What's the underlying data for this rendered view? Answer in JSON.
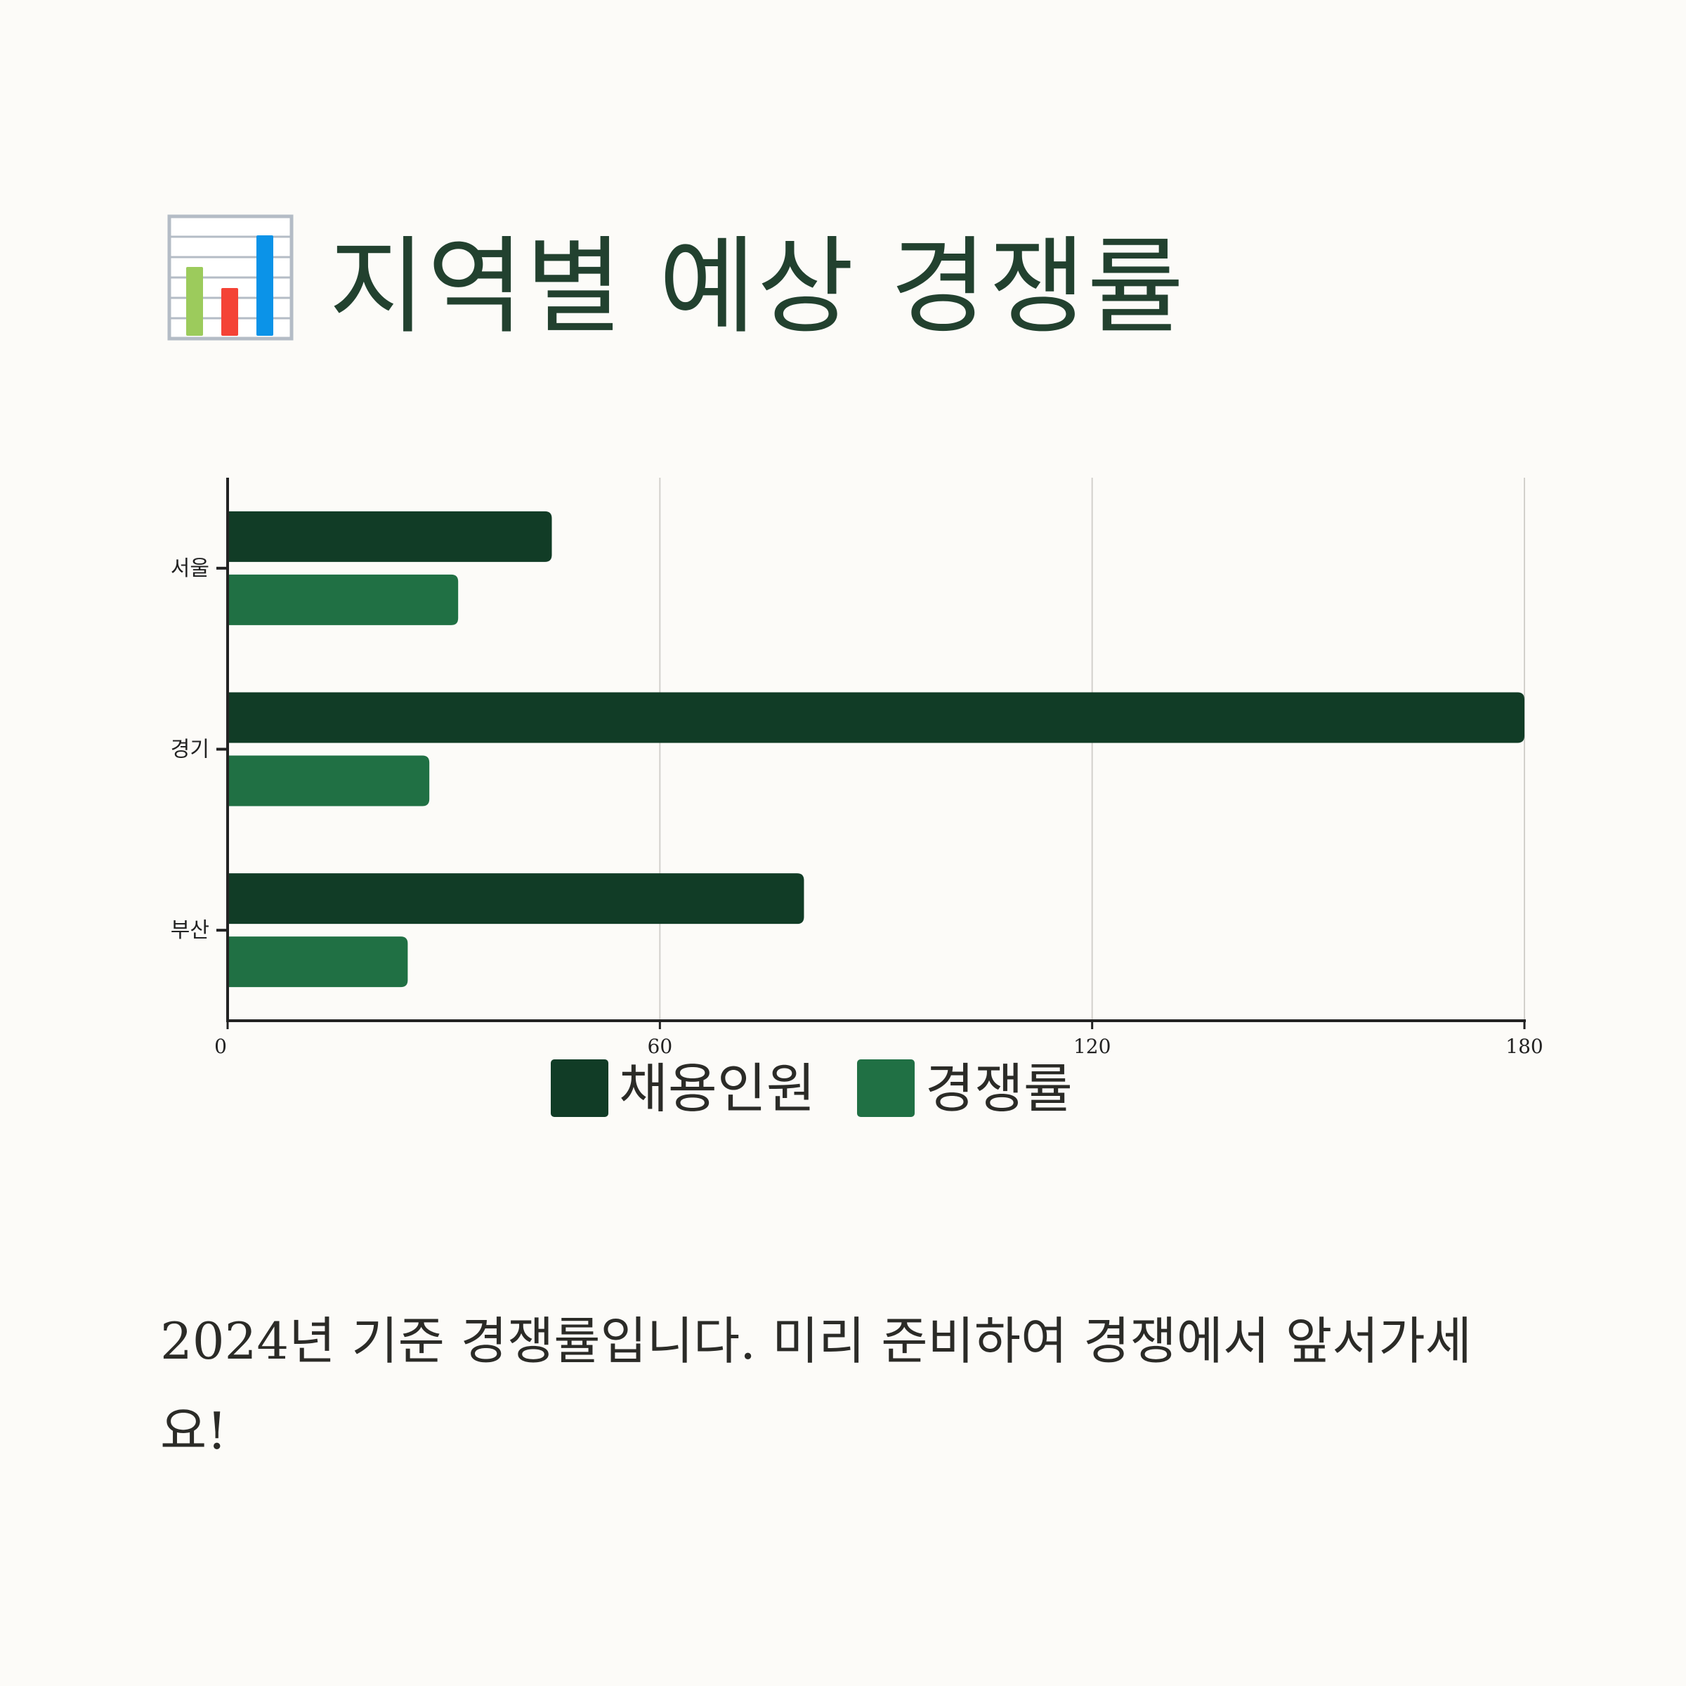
{
  "header": {
    "icon": "bar-chart-icon",
    "title": "지역별 예상 경쟁률"
  },
  "chart_data": {
    "type": "bar",
    "orientation": "horizontal",
    "categories": [
      "서울",
      "경기",
      "부산"
    ],
    "series": [
      {
        "name": "채용인원",
        "values": [
          45,
          180,
          80
        ],
        "color": "#113c26"
      },
      {
        "name": "경쟁률",
        "values": [
          32,
          28,
          25
        ],
        "color": "#207044"
      }
    ],
    "xlim": [
      0,
      180
    ],
    "xticks": [
      0,
      60,
      120,
      180
    ],
    "grid": "vertical",
    "legend": "bottom",
    "title": "",
    "xlabel": "",
    "ylabel": ""
  },
  "description": "2024년 기준 경쟁률입니다. 미리 준비하여 경쟁에서 앞서가세요!"
}
